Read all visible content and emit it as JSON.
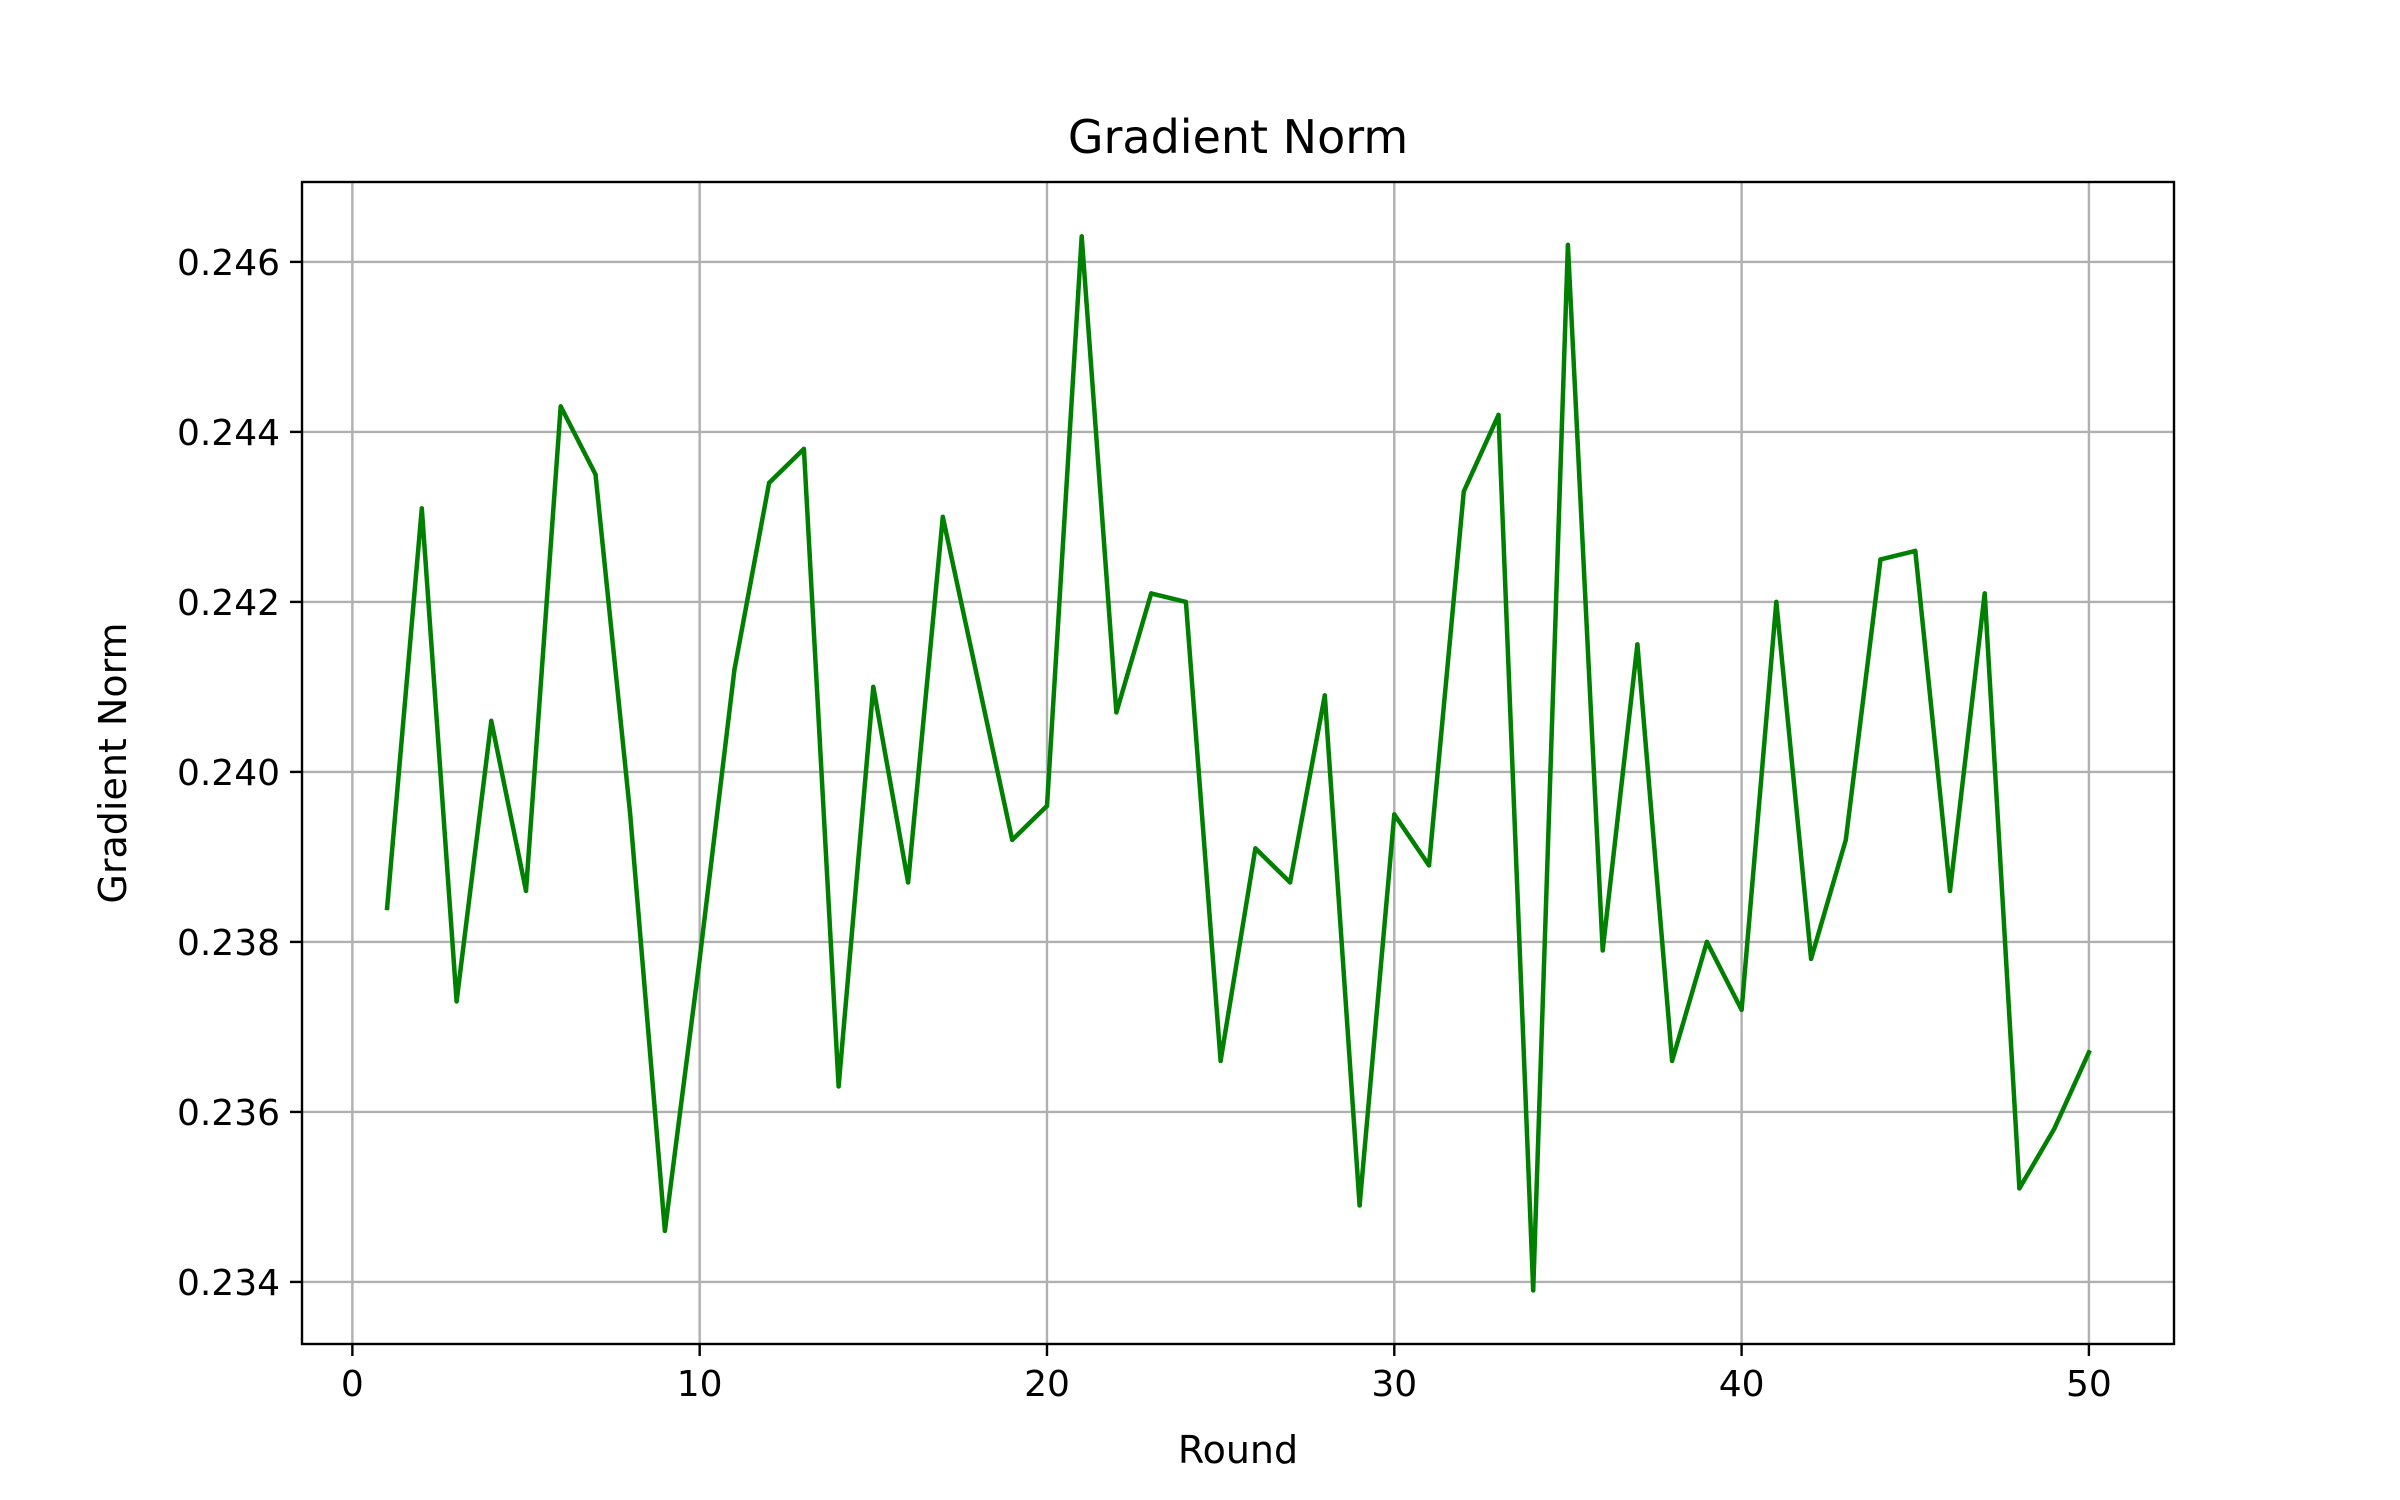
{
  "chart_data": {
    "type": "line",
    "title": "Gradient Norm",
    "xlabel": "Round",
    "ylabel": "Gradient Norm",
    "xlim": [
      -1.45,
      52.45
    ],
    "ylim": [
      0.23327,
      0.24694
    ],
    "grid": true,
    "legend": "none",
    "xticks": [
      0,
      10,
      20,
      30,
      40,
      50
    ],
    "xtick_labels": [
      "0",
      "10",
      "20",
      "30",
      "40",
      "50"
    ],
    "yticks": [
      0.234,
      0.236,
      0.238,
      0.24,
      0.242,
      0.244,
      0.246
    ],
    "ytick_labels": [
      "0.234",
      "0.236",
      "0.238",
      "0.240",
      "0.242",
      "0.244",
      "0.246"
    ],
    "series": [
      {
        "color": "#008000",
        "x": [
          1,
          2,
          3,
          4,
          5,
          6,
          7,
          8,
          9,
          10,
          11,
          12,
          13,
          14,
          15,
          16,
          17,
          18,
          19,
          20,
          21,
          22,
          23,
          24,
          25,
          26,
          27,
          28,
          29,
          30,
          31,
          32,
          33,
          34,
          35,
          36,
          37,
          38,
          39,
          40,
          41,
          42,
          43,
          44,
          45,
          46,
          47,
          48,
          49,
          50
        ],
        "values": [
          0.2384,
          0.2431,
          0.2373,
          0.2406,
          0.2386,
          0.2443,
          0.2435,
          0.2395,
          0.2346,
          0.2378,
          0.2412,
          0.2434,
          0.2438,
          0.2363,
          0.241,
          0.2387,
          0.243,
          0.2411,
          0.2392,
          0.2396,
          0.2463,
          0.2407,
          0.2421,
          0.242,
          0.2366,
          0.2391,
          0.2387,
          0.2409,
          0.2349,
          0.2395,
          0.2389,
          0.2433,
          0.2442,
          0.2339,
          0.2462,
          0.2379,
          0.2415,
          0.2366,
          0.238,
          0.2372,
          0.242,
          0.2378,
          0.2392,
          0.2425,
          0.2426,
          0.2386,
          0.2421,
          0.2351,
          0.2358,
          0.2367
        ]
      }
    ]
  }
}
